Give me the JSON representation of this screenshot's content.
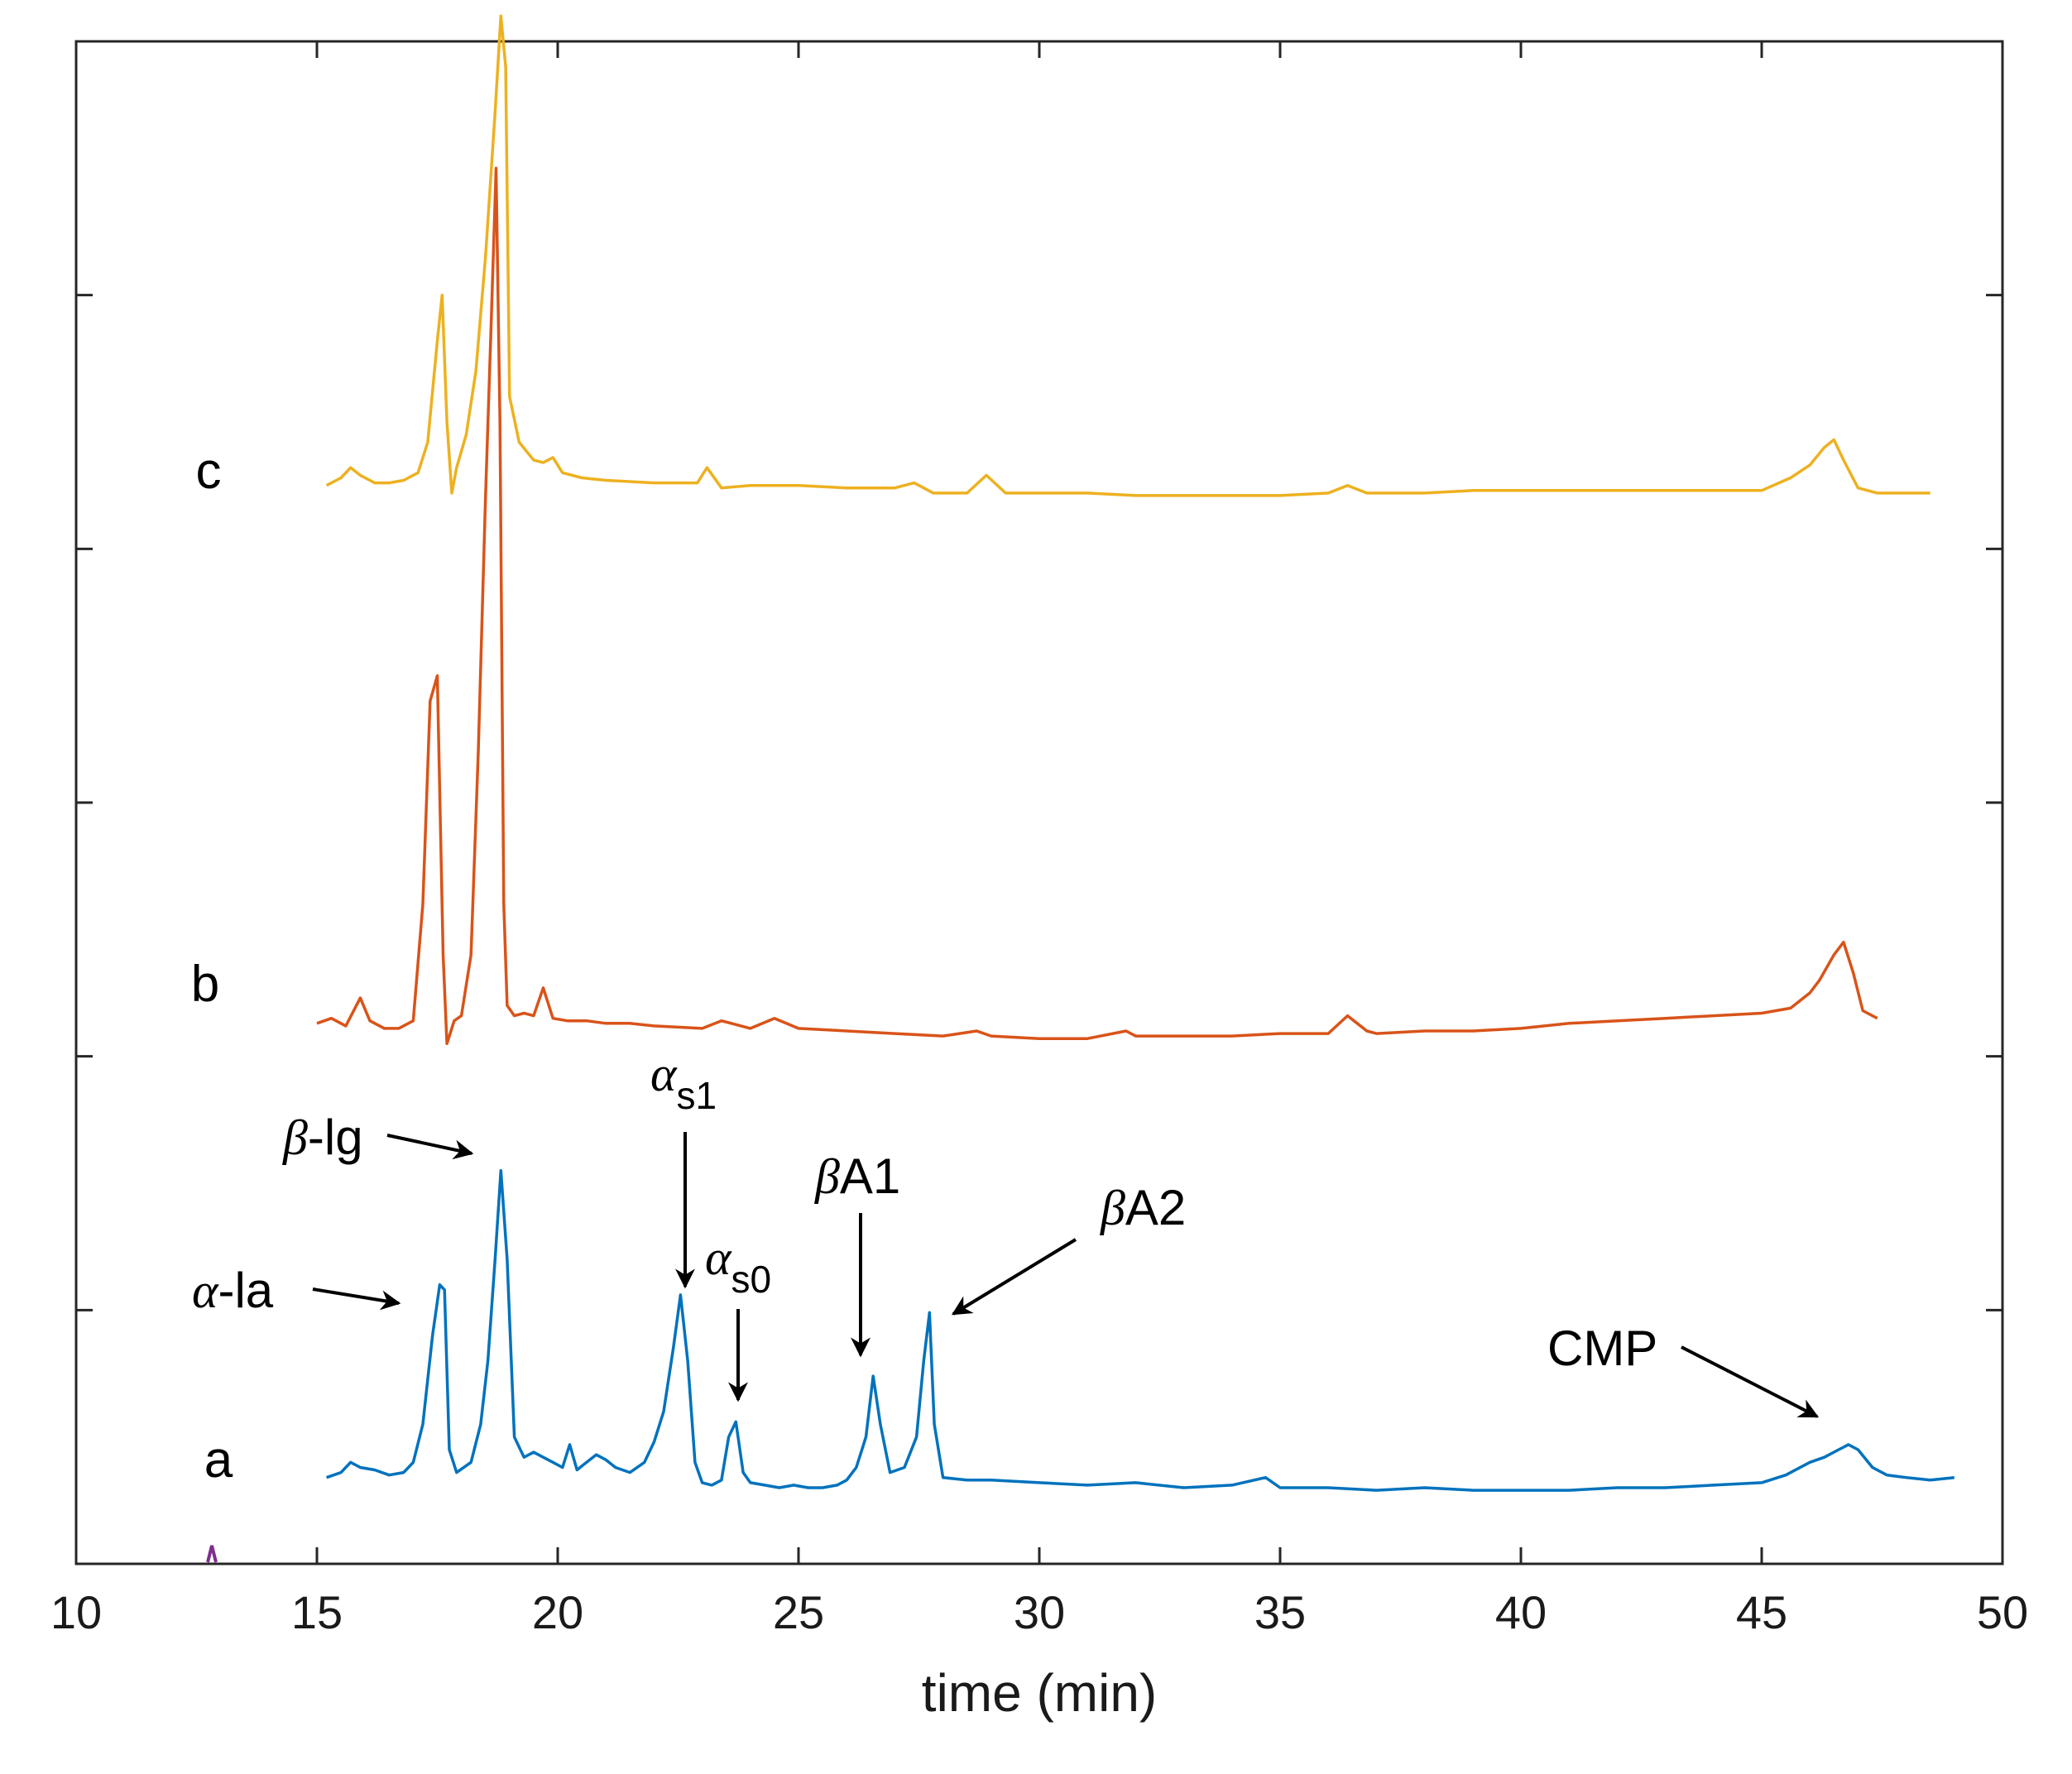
{
  "chart_data": {
    "type": "line",
    "title": "",
    "xlabel": "time (min)",
    "ylabel": "",
    "xlim": [
      10,
      50
    ],
    "ylim": [
      0,
      6
    ],
    "xticks": [
      "10",
      "15",
      "20",
      "25",
      "30",
      "35",
      "40",
      "45",
      "50"
    ],
    "grid": false,
    "colors": {
      "a": "#0072bd",
      "b": "#d95319",
      "c": "#edb120",
      "marker": "#7e2f8e"
    },
    "series": [
      {
        "name": "a",
        "label": "a",
        "color": "#0072bd",
        "x": [
          15.2,
          15.5,
          15.7,
          15.9,
          16.2,
          16.5,
          16.8,
          17.0,
          17.2,
          17.4,
          17.55,
          17.65,
          17.75,
          17.9,
          18.2,
          18.4,
          18.55,
          18.7,
          18.82,
          18.95,
          19.1,
          19.3,
          19.5,
          19.7,
          19.9,
          20.1,
          20.25,
          20.4,
          20.6,
          20.8,
          21.0,
          21.2,
          21.5,
          21.8,
          22.0,
          22.2,
          22.4,
          22.55,
          22.7,
          22.85,
          23.0,
          23.2,
          23.4,
          23.55,
          23.7,
          23.85,
          24.0,
          24.3,
          24.6,
          24.9,
          25.2,
          25.5,
          25.8,
          26.0,
          26.2,
          26.4,
          26.55,
          26.7,
          26.9,
          27.2,
          27.45,
          27.6,
          27.72,
          27.82,
          28.0,
          28.5,
          29.0,
          30.0,
          31.0,
          32.0,
          33.0,
          34.0,
          34.7,
          35.0,
          36.0,
          37.0,
          38.0,
          39.0,
          40.0,
          41.0,
          42.0,
          43.0,
          44.0,
          45.0,
          45.5,
          46.0,
          46.3,
          46.6,
          46.8,
          47.0,
          47.3,
          47.6,
          48.0,
          48.5,
          49.0
        ],
        "y": [
          0.34,
          0.36,
          0.4,
          0.38,
          0.37,
          0.35,
          0.36,
          0.4,
          0.55,
          0.9,
          1.1,
          1.08,
          0.45,
          0.36,
          0.4,
          0.55,
          0.8,
          1.2,
          1.55,
          1.2,
          0.5,
          0.42,
          0.44,
          0.42,
          0.4,
          0.38,
          0.47,
          0.37,
          0.4,
          0.43,
          0.41,
          0.38,
          0.36,
          0.4,
          0.48,
          0.6,
          0.85,
          1.06,
          0.8,
          0.4,
          0.32,
          0.31,
          0.33,
          0.5,
          0.56,
          0.36,
          0.32,
          0.31,
          0.3,
          0.31,
          0.3,
          0.3,
          0.31,
          0.33,
          0.38,
          0.5,
          0.74,
          0.55,
          0.36,
          0.38,
          0.5,
          0.8,
          0.99,
          0.55,
          0.34,
          0.33,
          0.33,
          0.32,
          0.31,
          0.32,
          0.3,
          0.31,
          0.34,
          0.3,
          0.3,
          0.29,
          0.3,
          0.29,
          0.29,
          0.29,
          0.3,
          0.3,
          0.31,
          0.32,
          0.35,
          0.4,
          0.42,
          0.45,
          0.47,
          0.45,
          0.38,
          0.35,
          0.34,
          0.33,
          0.34
        ]
      },
      {
        "name": "b",
        "label": "b",
        "color": "#d95319",
        "x": [
          15.0,
          15.3,
          15.6,
          15.9,
          16.1,
          16.4,
          16.7,
          17.0,
          17.2,
          17.35,
          17.5,
          17.62,
          17.7,
          17.85,
          18.0,
          18.2,
          18.35,
          18.5,
          18.62,
          18.72,
          18.8,
          18.88,
          18.95,
          19.1,
          19.3,
          19.5,
          19.7,
          19.9,
          20.2,
          20.6,
          21.0,
          21.5,
          22.0,
          23.0,
          23.4,
          24.0,
          24.5,
          25.0,
          26.0,
          27.0,
          28.0,
          28.7,
          29.0,
          30.0,
          31.0,
          31.8,
          32.0,
          33.0,
          34.0,
          35.0,
          36.0,
          36.4,
          36.8,
          37.0,
          38.0,
          39.0,
          40.0,
          41.0,
          42.0,
          43.0,
          44.0,
          45.0,
          45.6,
          46.0,
          46.2,
          46.5,
          46.7,
          46.9,
          47.1,
          47.4
        ],
        "y": [
          2.13,
          2.15,
          2.12,
          2.23,
          2.14,
          2.11,
          2.11,
          2.14,
          2.6,
          3.4,
          3.5,
          2.4,
          2.05,
          2.14,
          2.16,
          2.4,
          3.2,
          4.2,
          4.9,
          5.5,
          4.5,
          2.6,
          2.2,
          2.16,
          2.17,
          2.16,
          2.27,
          2.15,
          2.14,
          2.14,
          2.13,
          2.13,
          2.12,
          2.11,
          2.14,
          2.11,
          2.15,
          2.11,
          2.1,
          2.09,
          2.08,
          2.1,
          2.08,
          2.07,
          2.07,
          2.1,
          2.08,
          2.08,
          2.08,
          2.09,
          2.09,
          2.16,
          2.1,
          2.09,
          2.1,
          2.1,
          2.11,
          2.13,
          2.14,
          2.15,
          2.16,
          2.17,
          2.19,
          2.25,
          2.3,
          2.4,
          2.45,
          2.33,
          2.18,
          2.15
        ]
      },
      {
        "name": "c",
        "label": "c",
        "color": "#edb120",
        "x": [
          15.2,
          15.5,
          15.7,
          15.9,
          16.2,
          16.5,
          16.8,
          17.1,
          17.3,
          17.5,
          17.6,
          17.7,
          17.8,
          17.9,
          18.1,
          18.3,
          18.5,
          18.7,
          18.82,
          18.92,
          19.0,
          19.2,
          19.5,
          19.7,
          19.9,
          20.1,
          20.5,
          21.0,
          22.0,
          22.9,
          23.1,
          23.4,
          24.0,
          25.0,
          26.0,
          27.0,
          27.4,
          27.8,
          28.5,
          28.9,
          29.3,
          30.0,
          31.0,
          32.0,
          33.0,
          34.0,
          35.0,
          36.0,
          36.4,
          36.8,
          37.0,
          38.0,
          39.0,
          40.0,
          41.0,
          42.0,
          43.0,
          44.0,
          45.0,
          45.6,
          46.0,
          46.3,
          46.5,
          46.7,
          47.0,
          47.4,
          48.0,
          48.5
        ],
        "y": [
          4.25,
          4.28,
          4.32,
          4.29,
          4.26,
          4.26,
          4.27,
          4.3,
          4.42,
          4.82,
          5.0,
          4.5,
          4.22,
          4.32,
          4.45,
          4.7,
          5.15,
          5.72,
          6.1,
          5.9,
          4.6,
          4.42,
          4.35,
          4.34,
          4.36,
          4.3,
          4.28,
          4.27,
          4.26,
          4.26,
          4.32,
          4.24,
          4.25,
          4.25,
          4.24,
          4.24,
          4.26,
          4.22,
          4.22,
          4.29,
          4.22,
          4.22,
          4.22,
          4.21,
          4.21,
          4.21,
          4.21,
          4.22,
          4.25,
          4.22,
          4.22,
          4.22,
          4.23,
          4.23,
          4.23,
          4.23,
          4.23,
          4.23,
          4.23,
          4.28,
          4.33,
          4.4,
          4.43,
          4.35,
          4.24,
          4.22,
          4.22,
          4.22
        ]
      }
    ],
    "annotations": [
      {
        "name": "alpha-la",
        "greek": "α",
        "text": "-la",
        "sub": ""
      },
      {
        "name": "beta-lg",
        "greek": "β",
        "text": "-lg",
        "sub": ""
      },
      {
        "name": "alpha-s1",
        "greek": "α",
        "text": "",
        "sub": "s1"
      },
      {
        "name": "alpha-s0",
        "greek": "α",
        "text": "",
        "sub": "s0"
      },
      {
        "name": "beta-a1",
        "greek": "β",
        "text": "A1",
        "sub": ""
      },
      {
        "name": "beta-a2",
        "greek": "β",
        "text": "A2",
        "sub": ""
      },
      {
        "name": "cmp",
        "greek": "",
        "text": "CMP",
        "sub": ""
      }
    ]
  }
}
